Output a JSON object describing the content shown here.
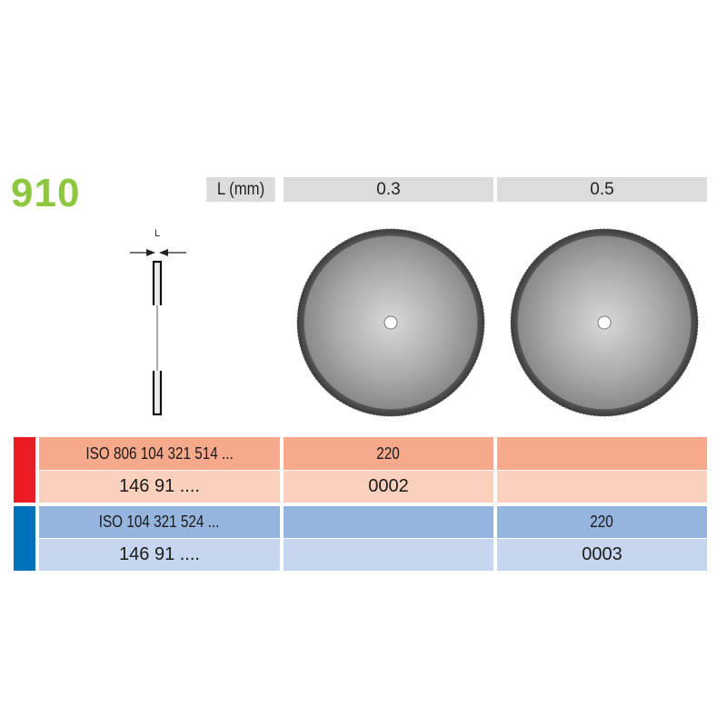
{
  "model_number": "910",
  "header": {
    "label": "L (mm)",
    "sizes": [
      "0.3",
      "0.5"
    ]
  },
  "diagram": {
    "dimension_label": "L"
  },
  "colors": {
    "model": "#8dc63f",
    "red_group": "#ed1c24",
    "blue_group": "#0072bc"
  },
  "rows": [
    {
      "label": "ISO 806 104 321 514 ...",
      "values": [
        "220",
        ""
      ]
    },
    {
      "label": "146 91 ....",
      "values": [
        "0002",
        ""
      ]
    },
    {
      "label": "ISO 104 321 524 ...",
      "values": [
        "",
        "220"
      ]
    },
    {
      "label": "146 91 ....",
      "values": [
        "",
        "0003"
      ]
    }
  ]
}
